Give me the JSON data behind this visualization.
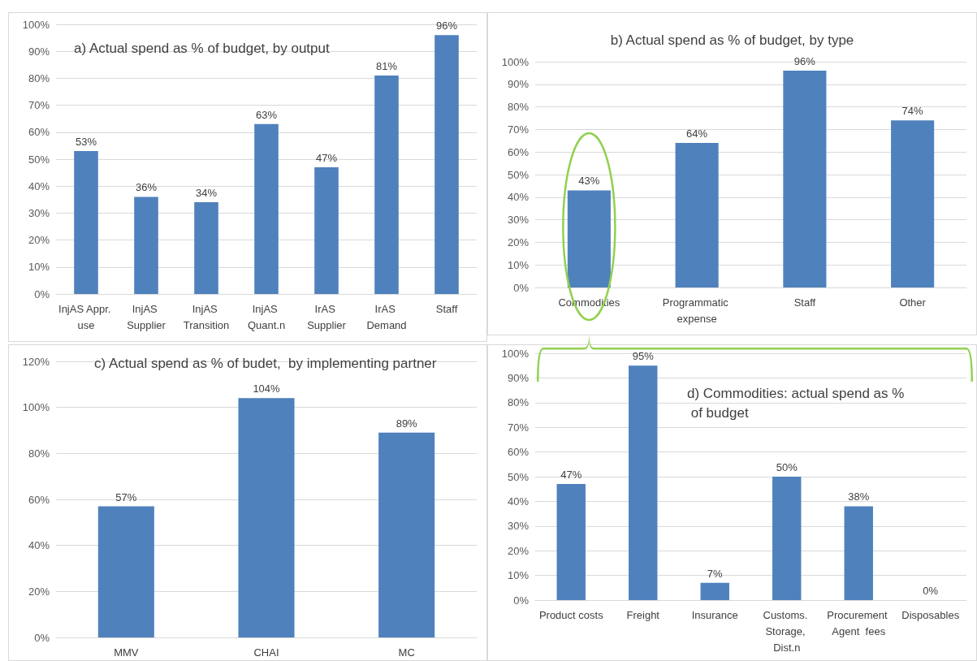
{
  "chart_data": [
    {
      "type": "bar",
      "title": "a) Actual spend as % of budget, by output",
      "categories": [
        "InjAS Appr. use",
        "InjAS Supplier",
        "InjAS Transition",
        "InjAS Quant.n",
        "IrAS Supplier",
        "IrAS Demand",
        "Staff"
      ],
      "values": [
        53,
        36,
        34,
        63,
        47,
        81,
        96
      ],
      "value_labels": [
        "53%",
        "36%",
        "34%",
        "63%",
        "47%",
        "81%",
        "96%"
      ],
      "color": "#4f81bd",
      "ylim": [
        0,
        100
      ],
      "yticks": [
        {
          "value": 0,
          "label": "0%"
        },
        {
          "value": 10,
          "label": "10%"
        },
        {
          "value": 20,
          "label": "20%"
        },
        {
          "value": 30,
          "label": "30%"
        },
        {
          "value": 40,
          "label": "40%"
        },
        {
          "value": 50,
          "label": "50%"
        },
        {
          "value": 60,
          "label": "60%"
        },
        {
          "value": 70,
          "label": "70%"
        },
        {
          "value": 80,
          "label": "80%"
        },
        {
          "value": 90,
          "label": "90%"
        },
        {
          "value": 100,
          "label": "100%"
        }
      ],
      "grid": "y"
    },
    {
      "type": "bar",
      "title": "b) Actual spend as % of budget, by type",
      "categories": [
        "Commodities",
        "Programmatic expense",
        "Staff",
        "Other"
      ],
      "values": [
        43,
        64,
        96,
        74
      ],
      "value_labels": [
        "43%",
        "64%",
        "96%",
        "74%"
      ],
      "color": "#4f81bd",
      "ylim": [
        0,
        100
      ],
      "yticks": [
        {
          "value": 0,
          "label": "0%"
        },
        {
          "value": 10,
          "label": "10%"
        },
        {
          "value": 20,
          "label": "20%"
        },
        {
          "value": 30,
          "label": "30%"
        },
        {
          "value": 40,
          "label": "40%"
        },
        {
          "value": 50,
          "label": "50%"
        },
        {
          "value": 60,
          "label": "60%"
        },
        {
          "value": 70,
          "label": "70%"
        },
        {
          "value": 80,
          "label": "80%"
        },
        {
          "value": 90,
          "label": "90%"
        },
        {
          "value": 100,
          "label": "100%"
        }
      ],
      "grid": "y"
    },
    {
      "type": "bar",
      "title": "c) Actual spend as % of budet,  by implementing partner",
      "categories": [
        "MMV",
        "CHAI",
        "MC"
      ],
      "values": [
        57,
        104,
        89
      ],
      "value_labels": [
        "57%",
        "104%",
        "89%"
      ],
      "color": "#4f81bd",
      "ylim": [
        0,
        120
      ],
      "yticks": [
        {
          "value": 0,
          "label": "0%"
        },
        {
          "value": 20,
          "label": "20%"
        },
        {
          "value": 40,
          "label": "40%"
        },
        {
          "value": 60,
          "label": "60%"
        },
        {
          "value": 80,
          "label": "80%"
        },
        {
          "value": 100,
          "label": "100%"
        },
        {
          "value": 120,
          "label": "120%"
        }
      ],
      "grid": "y"
    },
    {
      "type": "bar",
      "title": "d) Commodities: actual spend as % of budget",
      "categories": [
        "Product costs",
        "Freight",
        "Insurance",
        "Customs. Storage, Dist.n",
        "Procurement Agent  fees",
        "Disposables"
      ],
      "values": [
        47,
        95,
        7,
        50,
        38,
        0
      ],
      "value_labels": [
        "47%",
        "95%",
        "7%",
        "50%",
        "38%",
        "0%"
      ],
      "color": "#4f81bd",
      "ylim": [
        0,
        100
      ],
      "yticks": [
        {
          "value": 0,
          "label": "0%"
        },
        {
          "value": 10,
          "label": "10%"
        },
        {
          "value": 20,
          "label": "20%"
        },
        {
          "value": 30,
          "label": "30%"
        },
        {
          "value": 40,
          "label": "40%"
        },
        {
          "value": 50,
          "label": "50%"
        },
        {
          "value": 60,
          "label": "60%"
        },
        {
          "value": 70,
          "label": "70%"
        },
        {
          "value": 80,
          "label": "80%"
        },
        {
          "value": 90,
          "label": "90%"
        },
        {
          "value": 100,
          "label": "100%"
        }
      ],
      "grid": "y"
    }
  ]
}
